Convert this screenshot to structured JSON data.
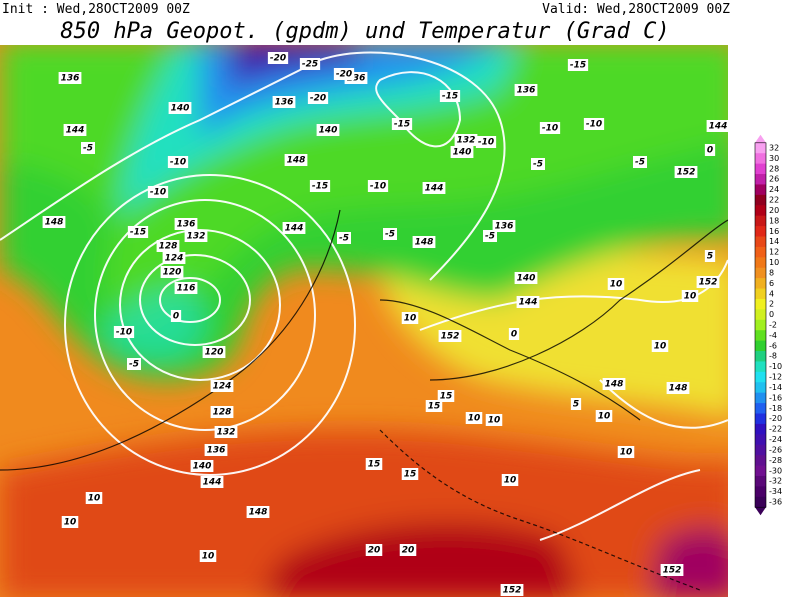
{
  "header": {
    "init": "Init : Wed,28OCT2009 00Z",
    "valid": "Valid: Wed,28OCT2009 00Z",
    "title": "850 hPa Geopot. (gpdm) und Temperatur (Grad C)"
  },
  "colorbar": {
    "levels": [
      32,
      30,
      28,
      26,
      24,
      22,
      20,
      18,
      16,
      14,
      12,
      10,
      8,
      6,
      4,
      2,
      0,
      -2,
      -4,
      -6,
      -8,
      -10,
      -12,
      -14,
      -16,
      -18,
      -20,
      -22,
      -24,
      -26,
      -28,
      -30,
      -32,
      -34,
      -36
    ],
    "colors": [
      "#f8a0f0",
      "#f070e0",
      "#e040d0",
      "#c020a8",
      "#a00060",
      "#900020",
      "#b00018",
      "#c81818",
      "#e02818",
      "#e84818",
      "#f06018",
      "#f07818",
      "#f09020",
      "#f0b020",
      "#f0d020",
      "#f0f020",
      "#d0f020",
      "#a0f020",
      "#60e020",
      "#30d030",
      "#20d080",
      "#20e0c0",
      "#20e0f0",
      "#20c0f0",
      "#2090f0",
      "#2060f0",
      "#2030e0",
      "#3010c0",
      "#4010b0",
      "#5010a0",
      "#601090",
      "#701090",
      "#5a0878",
      "#4a0068",
      "#3a0058"
    ]
  },
  "map_labels": [
    136,
    140,
    144,
    -5,
    -10,
    -10,
    -15,
    136,
    132,
    128,
    124,
    120,
    116,
    0,
    -10,
    -5,
    120,
    124,
    128,
    132,
    136,
    140,
    144,
    148,
    10,
    10,
    10,
    148,
    -20,
    -25,
    136,
    136,
    -20,
    140,
    148,
    -15,
    -10,
    144,
    144,
    -5,
    -5,
    148,
    -5,
    136,
    140,
    144,
    152,
    10,
    0,
    10,
    10,
    152,
    5,
    10,
    148,
    148,
    15,
    15,
    10,
    10,
    5,
    10,
    10,
    15,
    15,
    10,
    20,
    20,
    152,
    152,
    -10,
    -10,
    -15,
    -15,
    -15,
    136,
    132,
    140,
    -10,
    -5,
    -5,
    0,
    152,
    144,
    -20
  ]
}
